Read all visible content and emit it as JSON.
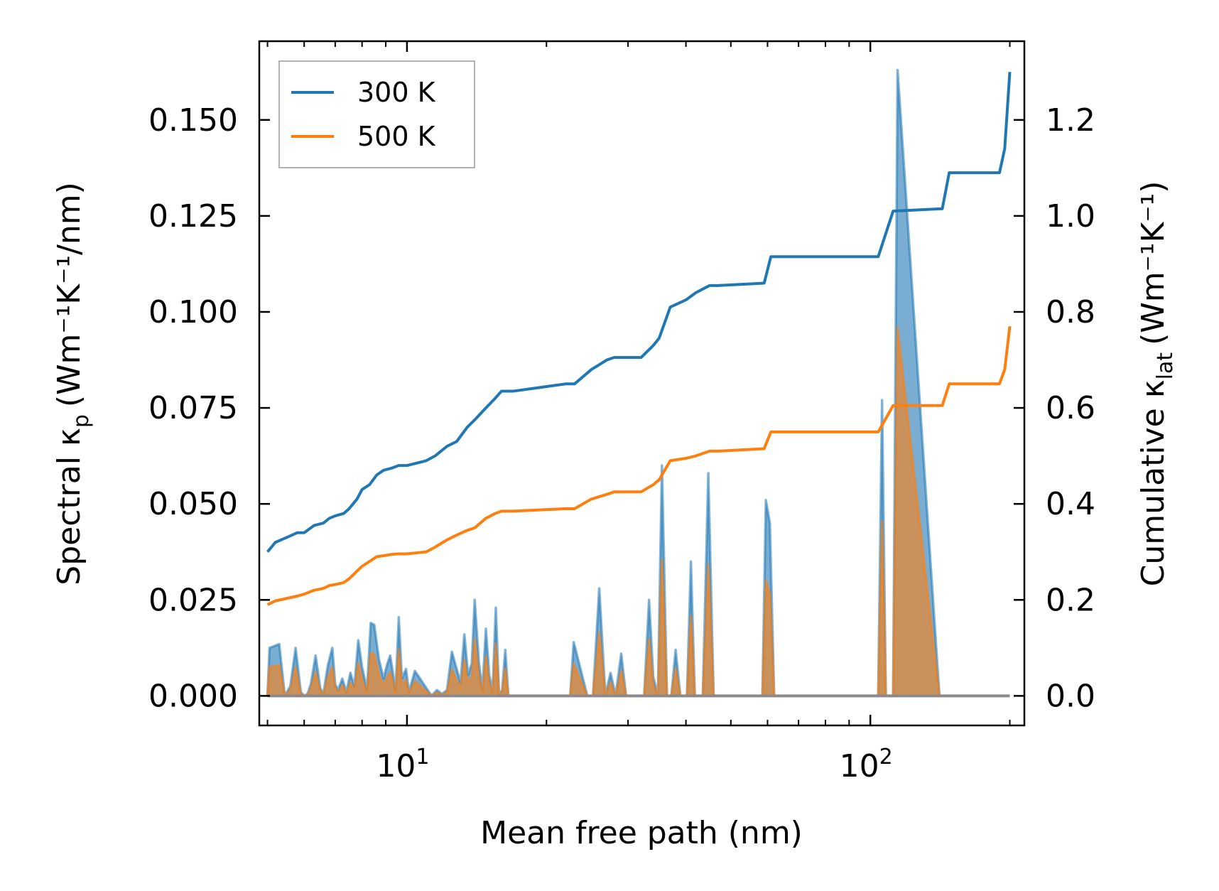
{
  "chart_data": {
    "type": "line",
    "xscale": "log",
    "xlim": [
      4.8,
      215
    ],
    "xticks": [
      {
        "value": 10,
        "base": "10",
        "exp": "1"
      },
      {
        "value": 100,
        "base": "10",
        "exp": "2"
      }
    ],
    "xlabel": "Mean free path (nm)",
    "left_axis": {
      "label_main": "Spectral κ",
      "label_sub": "p",
      "label_units": "(Wm⁻¹K⁻¹/nm)",
      "ylim": [
        -0.0077,
        0.1705
      ],
      "ticks": [
        0.0,
        0.025,
        0.05,
        0.075,
        0.1,
        0.125,
        0.15
      ],
      "tick_labels": [
        "0.000",
        "0.025",
        "0.050",
        "0.075",
        "0.100",
        "0.125",
        "0.150"
      ]
    },
    "right_axis": {
      "label_main": "Cumulative κ",
      "label_sub": "lat",
      "label_units": "(Wm⁻¹K⁻¹)",
      "ylim": [
        -0.0616,
        1.364
      ],
      "ticks": [
        0.0,
        0.2,
        0.4,
        0.6,
        0.8,
        1.0,
        1.2
      ],
      "tick_labels": [
        "0.0",
        "0.2",
        "0.4",
        "0.6",
        "0.8",
        "1.0",
        "1.2"
      ]
    },
    "legend": {
      "position": "upper-left",
      "entries": [
        {
          "label": "300 K",
          "color": "#1f77b4"
        },
        {
          "label": "500 K",
          "color": "#ff7f0e"
        }
      ]
    },
    "colors": {
      "s300": "#1f77b4",
      "s500": "#ff7f0e",
      "legend_border": "#999999"
    },
    "cumulative_series": [
      {
        "name": "300 K",
        "color": "#1f77b4",
        "x": [
          5.0,
          5.2,
          5.5,
          5.8,
          6.0,
          6.3,
          6.6,
          6.8,
          7.0,
          7.3,
          7.5,
          7.8,
          8.0,
          8.3,
          8.6,
          8.9,
          9.3,
          9.6,
          10.0,
          11.0,
          11.5,
          12.2,
          12.8,
          13.5,
          14.0,
          14.8,
          15.5,
          16.0,
          17.0,
          22.0,
          23.0,
          25.0,
          26.0,
          27.0,
          28.0,
          32.0,
          34.0,
          35.0,
          37.0,
          40.0,
          42.0,
          45.0,
          47.0,
          59.0,
          61.0,
          104.0,
          112.0,
          143.0,
          148.0,
          190.0,
          195.0,
          200.0
        ],
        "y": [
          0.3,
          0.32,
          0.33,
          0.34,
          0.34,
          0.355,
          0.36,
          0.37,
          0.375,
          0.38,
          0.39,
          0.41,
          0.43,
          0.44,
          0.46,
          0.47,
          0.475,
          0.48,
          0.48,
          0.49,
          0.5,
          0.52,
          0.53,
          0.56,
          0.575,
          0.6,
          0.62,
          0.635,
          0.635,
          0.65,
          0.65,
          0.68,
          0.69,
          0.7,
          0.705,
          0.705,
          0.73,
          0.745,
          0.81,
          0.825,
          0.84,
          0.855,
          0.855,
          0.86,
          0.915,
          0.915,
          1.01,
          1.015,
          1.09,
          1.09,
          1.14,
          1.3
        ]
      },
      {
        "name": "500 K",
        "color": "#ff7f0e",
        "x": [
          5.0,
          5.2,
          5.5,
          5.8,
          6.0,
          6.3,
          6.6,
          6.8,
          7.0,
          7.3,
          7.5,
          7.8,
          8.0,
          8.3,
          8.6,
          8.9,
          9.3,
          9.6,
          10.0,
          11.0,
          11.5,
          12.2,
          12.8,
          13.5,
          14.0,
          14.8,
          15.5,
          16.0,
          17.0,
          22.0,
          23.0,
          25.0,
          26.0,
          27.0,
          28.0,
          32.0,
          34.0,
          35.0,
          37.0,
          40.0,
          42.0,
          45.0,
          47.0,
          59.0,
          61.0,
          104.0,
          112.0,
          143.0,
          148.0,
          190.0,
          195.0,
          200.0
        ],
        "y": [
          0.19,
          0.198,
          0.203,
          0.208,
          0.212,
          0.22,
          0.224,
          0.23,
          0.232,
          0.236,
          0.244,
          0.26,
          0.27,
          0.28,
          0.29,
          0.292,
          0.295,
          0.296,
          0.296,
          0.3,
          0.31,
          0.325,
          0.335,
          0.345,
          0.35,
          0.37,
          0.38,
          0.385,
          0.385,
          0.39,
          0.39,
          0.41,
          0.415,
          0.42,
          0.425,
          0.425,
          0.44,
          0.45,
          0.49,
          0.495,
          0.5,
          0.51,
          0.51,
          0.515,
          0.55,
          0.55,
          0.605,
          0.605,
          0.65,
          0.65,
          0.68,
          0.77
        ]
      }
    ],
    "spectral_series": [
      {
        "name": "300 K spectral",
        "color": "#1f77b4",
        "x": [
          5.0,
          5.05,
          5.3,
          5.45,
          5.6,
          5.75,
          5.9,
          6.0,
          6.1,
          6.2,
          6.35,
          6.5,
          6.6,
          6.75,
          6.9,
          7.0,
          7.1,
          7.25,
          7.4,
          7.55,
          7.7,
          7.85,
          8.0,
          8.2,
          8.35,
          8.5,
          8.7,
          8.9,
          9.05,
          9.2,
          9.45,
          9.6,
          9.75,
          9.95,
          10.1,
          10.4,
          11.3,
          11.6,
          11.9,
          12.2,
          12.5,
          12.8,
          13.05,
          13.3,
          13.55,
          13.8,
          14.0,
          14.3,
          14.55,
          14.8,
          15.05,
          15.3,
          15.55,
          15.8,
          16.05,
          16.3,
          16.55,
          16.9,
          17.2,
          17.5,
          22.0,
          22.5,
          22.9,
          24.5,
          25.2,
          26.0,
          26.8,
          27.5,
          28.2,
          29.0,
          29.7,
          32.5,
          33.3,
          34.0,
          34.8,
          35.5,
          36.4,
          37.2,
          38.0,
          38.9,
          40.2,
          41.0,
          41.8,
          43.5,
          44.7,
          45.9,
          47.2,
          58.5,
          59.5,
          60.7,
          62.0,
          104.0,
          106.0,
          108.0,
          110.0,
          112.0,
          114.5,
          141.0,
          143.5,
          146.0,
          148.5,
          188.0,
          191.0,
          194.0,
          197.0,
          200.0
        ],
        "y": [
          0.0,
          0.0125,
          0.0135,
          0.0,
          0.0025,
          0.0125,
          0.001,
          0.0,
          0.0005,
          0.003,
          0.0105,
          0.002,
          0.0005,
          0.008,
          0.0125,
          0.003,
          0.0015,
          0.0045,
          0.001,
          0.006,
          0.0025,
          0.0145,
          0.0075,
          0.0015,
          0.019,
          0.0185,
          0.0095,
          0.0045,
          0.008,
          0.0105,
          0.0015,
          0.0205,
          0.0045,
          0.007,
          0.001,
          0.0065,
          0.0,
          0.0015,
          0.0005,
          0.0015,
          0.0115,
          0.007,
          0.0035,
          0.016,
          0.0055,
          0.0085,
          0.025,
          0.0085,
          0.0015,
          0.0175,
          0.0055,
          0.001,
          0.023,
          0.0005,
          0.0015,
          0.012,
          0.0,
          0.0,
          0.0,
          0.0,
          0.0,
          0.0,
          0.014,
          0.0,
          0.0,
          0.028,
          0.0,
          0.006,
          0.0,
          0.011,
          0.0,
          0.0,
          0.025,
          0.005,
          0.0,
          0.06,
          0.0,
          0.0,
          0.012,
          0.0,
          0.0,
          0.035,
          0.0,
          0.0,
          0.058,
          0.0,
          0.0,
          0.0,
          0.051,
          0.045,
          0.0,
          0.0,
          0.077,
          0.0,
          0.0,
          0.0,
          0.163,
          0.0,
          0.0,
          0.0,
          0.0,
          0.0,
          0.0,
          0.0,
          0.0,
          0.0
        ]
      },
      {
        "name": "500 K spectral",
        "color": "#ff7f0e",
        "x": [
          5.0,
          5.05,
          5.3,
          5.45,
          5.6,
          5.75,
          5.9,
          6.0,
          6.1,
          6.2,
          6.35,
          6.5,
          6.6,
          6.75,
          6.9,
          7.0,
          7.1,
          7.25,
          7.4,
          7.55,
          7.7,
          7.85,
          8.0,
          8.2,
          8.35,
          8.5,
          8.7,
          8.9,
          9.05,
          9.2,
          9.45,
          9.6,
          9.75,
          9.95,
          10.1,
          10.4,
          11.3,
          11.6,
          11.9,
          12.2,
          12.5,
          12.8,
          13.05,
          13.3,
          13.55,
          13.8,
          14.0,
          14.3,
          14.55,
          14.8,
          15.05,
          15.3,
          15.55,
          15.8,
          16.05,
          16.3,
          16.55,
          16.9,
          17.2,
          17.5,
          22.0,
          22.5,
          22.9,
          24.5,
          25.2,
          26.0,
          26.8,
          27.5,
          28.2,
          29.0,
          29.7,
          32.5,
          33.3,
          34.0,
          34.8,
          35.5,
          36.4,
          37.2,
          38.0,
          38.9,
          40.2,
          41.0,
          41.8,
          43.5,
          44.7,
          45.9,
          47.2,
          58.5,
          59.5,
          60.7,
          62.0,
          104.0,
          106.0,
          108.0,
          110.0,
          112.0,
          114.5,
          141.0,
          143.5,
          146.0,
          148.5,
          188.0,
          191.0,
          194.0,
          197.0,
          200.0
        ],
        "y": [
          0.0,
          0.0075,
          0.008,
          0.0,
          0.0015,
          0.0075,
          0.0005,
          0.0,
          0.0003,
          0.0018,
          0.0062,
          0.0012,
          0.0003,
          0.0047,
          0.0074,
          0.0018,
          0.0009,
          0.0027,
          0.0006,
          0.0035,
          0.0015,
          0.0086,
          0.0044,
          0.0009,
          0.0112,
          0.0109,
          0.0056,
          0.0027,
          0.0047,
          0.0062,
          0.0009,
          0.0121,
          0.0027,
          0.0041,
          0.0006,
          0.0038,
          0.0,
          0.0009,
          0.0003,
          0.0009,
          0.0068,
          0.0041,
          0.0021,
          0.0094,
          0.0032,
          0.005,
          0.0148,
          0.005,
          0.0009,
          0.0103,
          0.0032,
          0.0006,
          0.0136,
          0.0003,
          0.0009,
          0.0071,
          0.0,
          0.0,
          0.0,
          0.0,
          0.0,
          0.0,
          0.0083,
          0.0,
          0.0,
          0.0165,
          0.0,
          0.0035,
          0.0,
          0.0065,
          0.0,
          0.0,
          0.0148,
          0.003,
          0.0,
          0.0354,
          0.0,
          0.0,
          0.0071,
          0.0,
          0.0,
          0.0207,
          0.0,
          0.0,
          0.0342,
          0.0,
          0.0,
          0.0,
          0.0301,
          0.0265,
          0.0,
          0.0,
          0.0454,
          0.0,
          0.0,
          0.0,
          0.096,
          0.0,
          0.0,
          0.0,
          0.0,
          0.0,
          0.0,
          0.0,
          0.0,
          0.0
        ]
      }
    ]
  }
}
